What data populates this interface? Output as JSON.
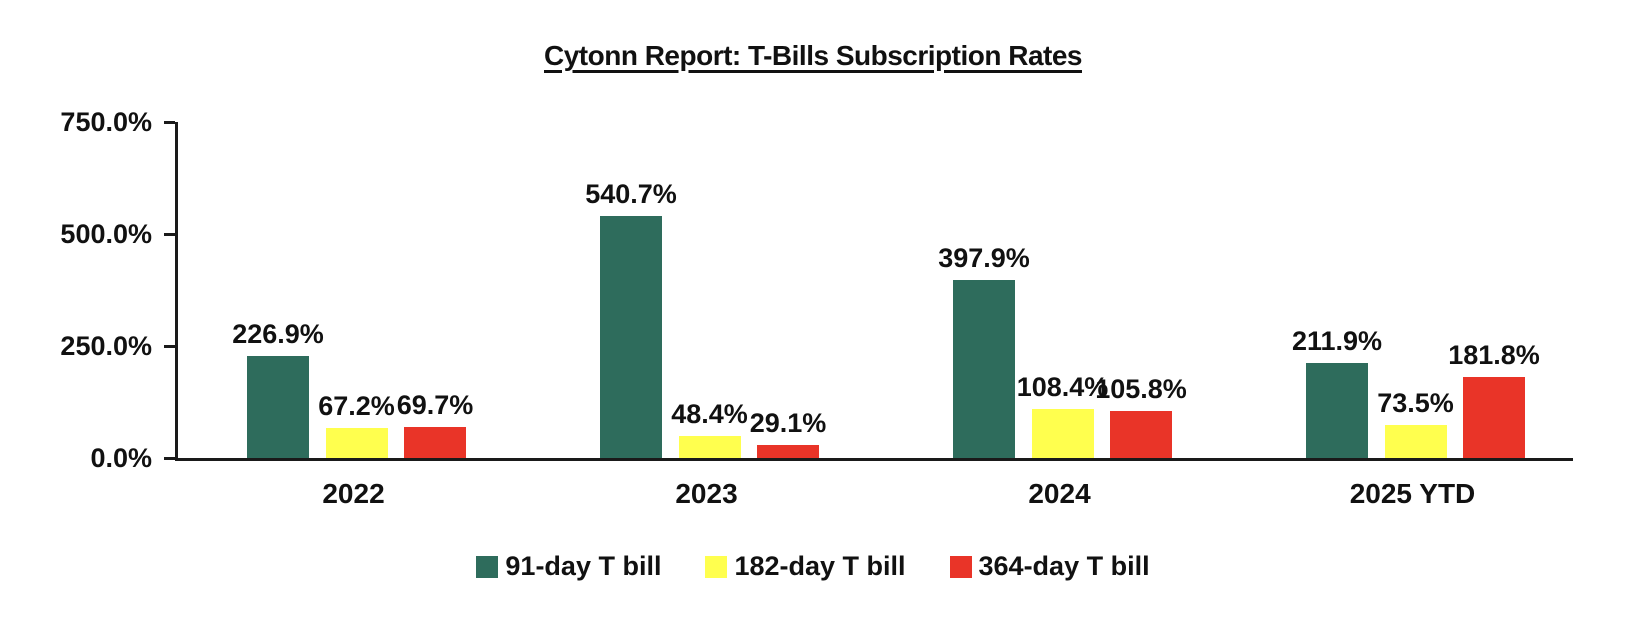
{
  "chart_data": {
    "type": "bar",
    "title": "Cytonn Report: T-Bills Subscription Rates",
    "categories": [
      "2022",
      "2023",
      "2024",
      "2025 YTD"
    ],
    "series": [
      {
        "name": "91-day T bill",
        "color": "#2E6C5C",
        "values": [
          226.9,
          540.7,
          397.9,
          211.9
        ],
        "labels": [
          "226.9%",
          "540.7%",
          "397.9%",
          "211.9%"
        ]
      },
      {
        "name": "182-day T bill",
        "color": "#FFFF4E",
        "values": [
          67.2,
          48.4,
          108.4,
          73.5
        ],
        "labels": [
          "67.2%",
          "48.4%",
          "108.4%",
          "73.5%"
        ]
      },
      {
        "name": "364-day T bill",
        "color": "#E93428",
        "values": [
          69.7,
          29.1,
          105.8,
          181.8
        ],
        "labels": [
          "69.7%",
          "29.1%",
          "105.8%",
          "181.8%"
        ]
      }
    ],
    "ylabel": "",
    "xlabel": "",
    "ylim": [
      0,
      750
    ],
    "ytick_values": [
      0,
      250,
      500,
      750
    ],
    "ytick_labels": [
      "0.0%",
      "250.0%",
      "500.0%",
      "750.0%"
    ],
    "grid": false,
    "legend_position": "bottom",
    "axis_color": "#1a1a1a",
    "data_labels_shown": true
  }
}
